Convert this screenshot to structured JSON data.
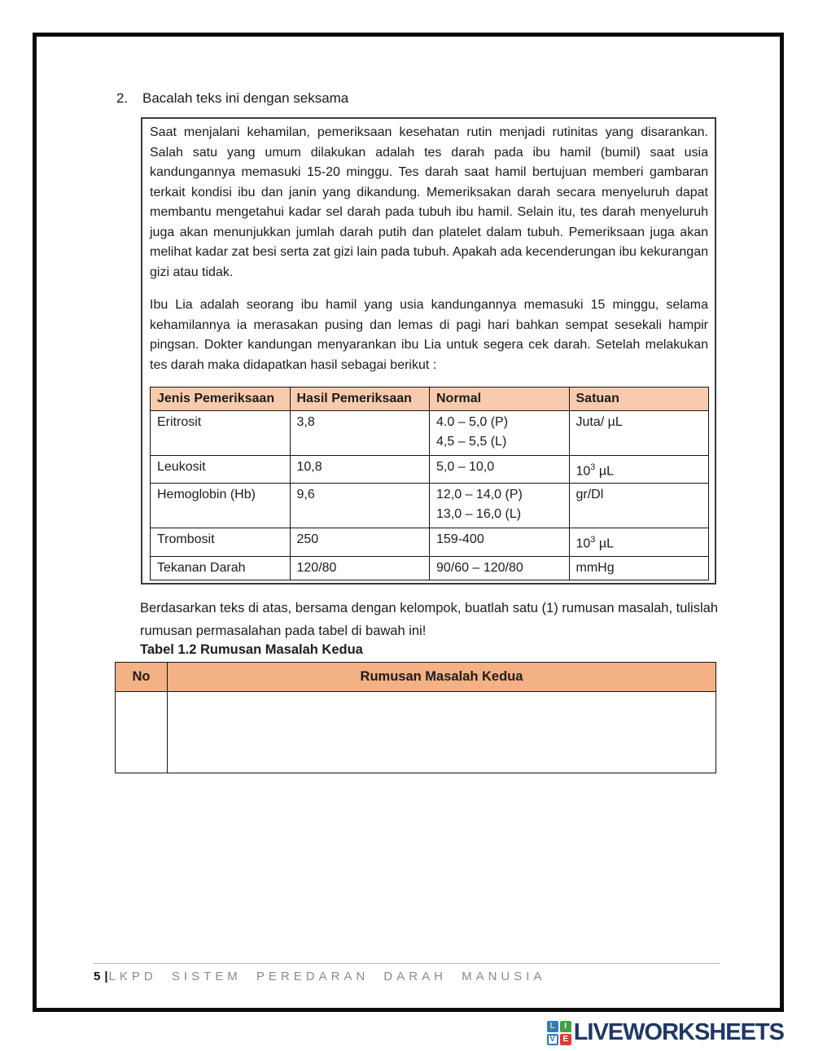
{
  "page": {
    "item_number": "2.",
    "instruction": "Bacalah teks ini dengan seksama"
  },
  "reading_box": {
    "paragraph1": "Saat menjalani kehamilan, pemeriksaan kesehatan rutin menjadi rutinitas yang disarankan. Salah satu yang umum dilakukan adalah tes darah pada ibu hamil (bumil) saat usia kandungannya memasuki 15-20 minggu.  Tes darah saat hamil bertujuan memberi gambaran terkait kondisi ibu dan janin yang dikandung. Memeriksakan darah secara menyeluruh dapat membantu mengetahui kadar sel darah pada tubuh ibu hamil. Selain itu, tes darah menyeluruh juga akan menunjukkan jumlah darah putih dan platelet dalam tubuh. Pemeriksaan juga akan melihat kadar zat besi serta zat gizi lain pada tubuh. Apakah ada kecenderungan ibu kekurangan gizi atau tidak.",
    "paragraph2": "Ibu Lia adalah seorang ibu hamil yang usia kandungannya memasuki 15 minggu, selama kehamilannya ia merasakan pusing dan lemas di pagi hari bahkan sempat sesekali hampir pingsan. Dokter kandungan menyarankan ibu Lia untuk segera cek darah. Setelah melakukan tes darah maka didapatkan hasil sebagai berikut :",
    "results_table": {
      "headers": [
        "Jenis Pemeriksaan",
        "Hasil Pemeriksaan",
        "Normal",
        "Satuan"
      ],
      "rows": [
        {
          "jenis": "Eritrosit",
          "hasil": "3,8",
          "normal": [
            "4.0 – 5,0 (P)",
            "4,5 – 5,5 (L)"
          ],
          "satuan": "Juta/ µL"
        },
        {
          "jenis": "Leukosit",
          "hasil": "10,8",
          "normal": [
            "5,0 – 10,0"
          ],
          "satuan": {
            "base": "10",
            "sup": "3",
            "unit": " µL"
          }
        },
        {
          "jenis": "Hemoglobin (Hb)",
          "hasil": "9,6",
          "normal": [
            "12,0 – 14,0 (P)",
            "13,0 – 16,0 (L)"
          ],
          "satuan": "gr/Dl"
        },
        {
          "jenis": "Trombosit",
          "hasil": "250",
          "normal": [
            "159-400"
          ],
          "satuan": {
            "base": "10",
            "sup": "3",
            "unit": " µL"
          }
        },
        {
          "jenis": "Tekanan Darah",
          "hasil": "120/80",
          "normal": [
            "90/60 – 120/80"
          ],
          "satuan": "mmHg"
        }
      ]
    }
  },
  "task": {
    "instruction": "Berdasarkan teks di atas, bersama dengan kelompok, buatlah satu (1) rumusan masalah, tulislah rumusan permasalahan pada tabel di bawah ini!",
    "table_caption": "Tabel 1.2 Rumusan Masalah Kedua",
    "answer_table": {
      "headers": [
        "No",
        "Rumusan Masalah Kedua"
      ],
      "answer_no": "",
      "answer_text": ""
    }
  },
  "footer": {
    "page_number": "5",
    "separator": "|",
    "label": "LKPD  SISTEM PEREDARAN DARAH MANUSIA"
  },
  "branding": {
    "logo_text": "LIVEWORKSHEETS",
    "tiles": [
      {
        "letter": "L",
        "bg": "#2F7BBF",
        "fg": "#FFD34D"
      },
      {
        "letter": "I",
        "bg": "#43A047",
        "fg": "#FFFFFF"
      },
      {
        "letter": "V",
        "bg": "#FFFFFF",
        "fg": "#2F7BBF"
      },
      {
        "letter": "E",
        "bg": "#E53935",
        "fg": "#FFFFFF"
      }
    ],
    "logo_text_color": "#1F3864"
  },
  "colors": {
    "results_header_bg": "#F8CBAD",
    "answer_header_bg": "#F4B183",
    "frame_border": "#0B0B0B",
    "footer_label": "#8A8A8A"
  }
}
